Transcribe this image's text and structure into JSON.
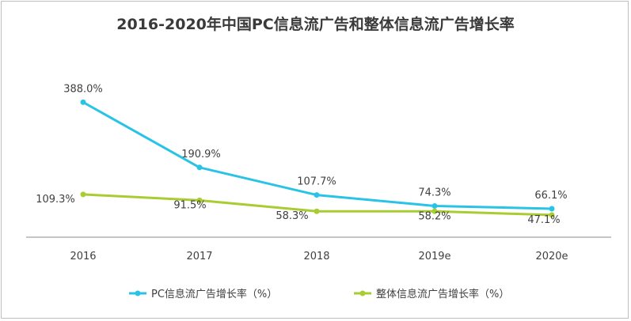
{
  "chart_data": {
    "type": "line",
    "title": "2016-2020年中国PC信息流广告和整体信息流广告增长率",
    "categories": [
      "2016",
      "2017",
      "2018",
      "2019e",
      "2020e"
    ],
    "series": [
      {
        "name": "PC信息流广告增长率（%）",
        "values": [
          388.0,
          190.9,
          107.7,
          74.3,
          66.1
        ],
        "labels": [
          "388.0%",
          "190.9%",
          "107.7%",
          "74.3%",
          "66.1%"
        ],
        "color": "#29c3e6"
      },
      {
        "name": "整体信息流广告增长率（%）",
        "values": [
          109.3,
          91.5,
          58.3,
          58.2,
          47.1
        ],
        "labels": [
          "109.3%",
          "91.5%",
          "58.3%",
          "58.2%",
          "47.1%"
        ],
        "color": "#a9cc33"
      }
    ],
    "ylim": [
      -20,
      470
    ],
    "grid": false,
    "legend_position": "bottom"
  }
}
